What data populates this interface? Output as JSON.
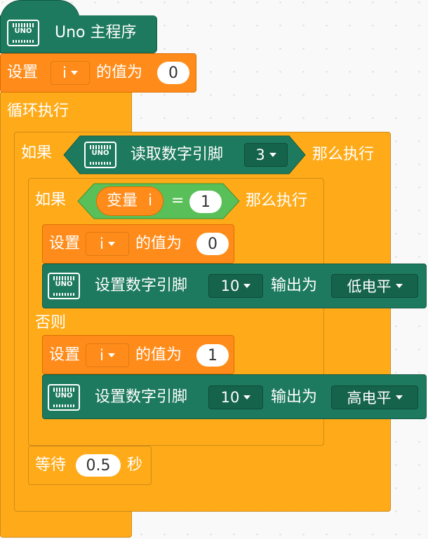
{
  "main": {
    "hat": {
      "icon": "uno-board-icon",
      "board_label": "UNO",
      "title": "Uno 主程序"
    },
    "set1": {
      "label": "设置",
      "var": "i",
      "mid": "的值为",
      "value": "0"
    },
    "forever": {
      "label": "循环执行"
    },
    "if_outer": {
      "label": "如果",
      "condition": {
        "board_label": "UNO",
        "text": "读取数字引脚",
        "pin": "3"
      },
      "then": "那么执行"
    },
    "if_inner": {
      "label": "如果",
      "condition": {
        "var_label": "变量",
        "var": "i",
        "op": "=",
        "value": "1"
      },
      "then": "那么执行",
      "else": "否则"
    },
    "set2": {
      "label": "设置",
      "var": "i",
      "mid": "的值为",
      "value": "0"
    },
    "write1": {
      "board_label": "UNO",
      "text": "设置数字引脚",
      "pin": "10",
      "mid": "输出为",
      "level": "低电平"
    },
    "set3": {
      "label": "设置",
      "var": "i",
      "mid": "的值为",
      "value": "1"
    },
    "write2": {
      "board_label": "UNO",
      "text": "设置数字引脚",
      "pin": "10",
      "mid": "输出为",
      "level": "高电平"
    },
    "wait": {
      "label": "等待",
      "value": "0.5",
      "unit": "秒"
    }
  },
  "colors": {
    "board_green": "#1d7a5e",
    "data_orange": "#ff8c1a",
    "control_orange": "#ffab19",
    "background": "#f9f9f9"
  }
}
